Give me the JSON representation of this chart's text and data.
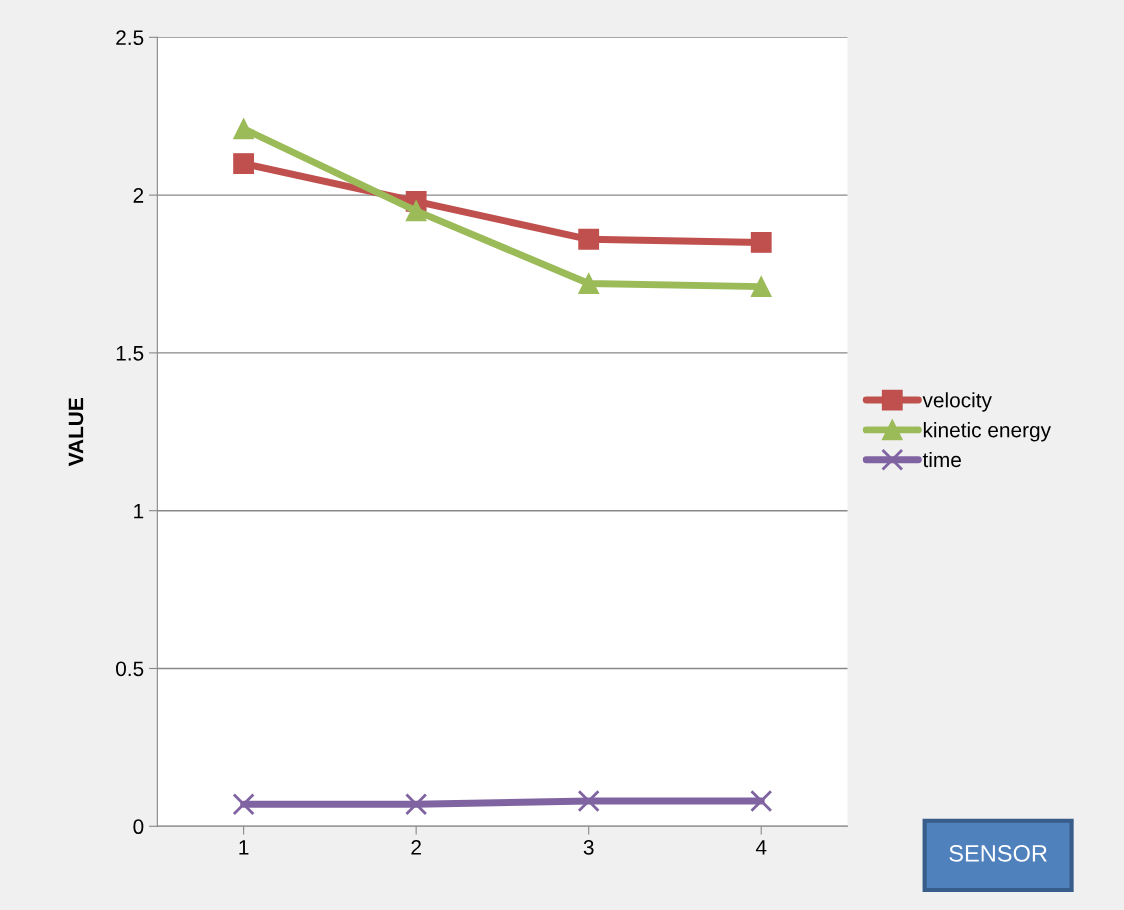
{
  "chart_data": {
    "type": "line",
    "ylabel": "VALUE",
    "xlabel": "SENSOR",
    "categories": [
      "1",
      "2",
      "3",
      "4"
    ],
    "series": [
      {
        "name": "velocity",
        "color": "#c0504d",
        "marker": "square",
        "values": [
          2.1,
          1.98,
          1.86,
          1.85
        ]
      },
      {
        "name": "kinetic energy",
        "color": "#9bbb59",
        "marker": "triangle",
        "values": [
          2.21,
          1.95,
          1.72,
          1.71
        ]
      },
      {
        "name": "time",
        "color": "#8064a2",
        "marker": "cross",
        "values": [
          0.07,
          0.07,
          0.08,
          0.08
        ]
      }
    ],
    "ylim": [
      0,
      2.5
    ],
    "yticks": [
      0,
      0.5,
      1,
      1.5,
      2,
      2.5
    ],
    "grid": "y",
    "legend": "right",
    "line_style": "solid"
  }
}
